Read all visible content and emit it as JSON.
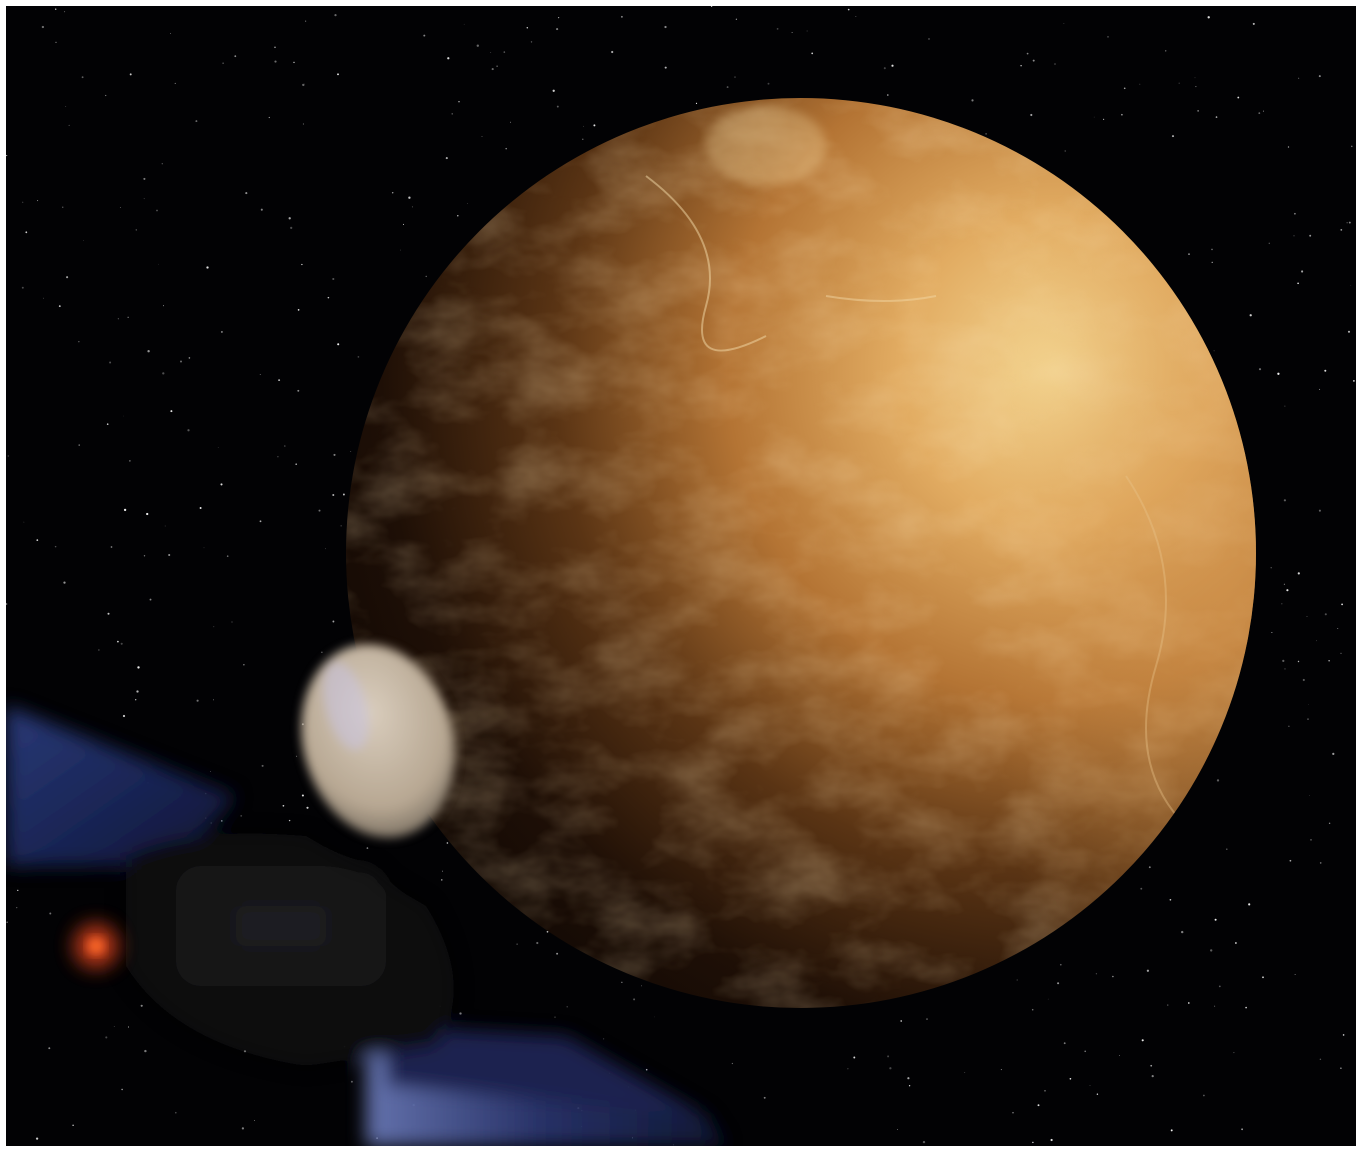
{
  "scene": {
    "subjects": [
      "planet",
      "spacecraft",
      "starfield"
    ],
    "colors": {
      "space": "#020204",
      "planet_highlight": "#f2d08a",
      "planet_mid": "#c98a45",
      "planet_shadow": "#140a04",
      "dish": "#cdbfae",
      "solar_panel": "#1c2a5e",
      "spacecraft_body": "#0d0d10",
      "thruster_glow": "#e0451a"
    },
    "icons": {
      "planet": "planet-icon",
      "spacecraft": "spacecraft-icon"
    }
  }
}
